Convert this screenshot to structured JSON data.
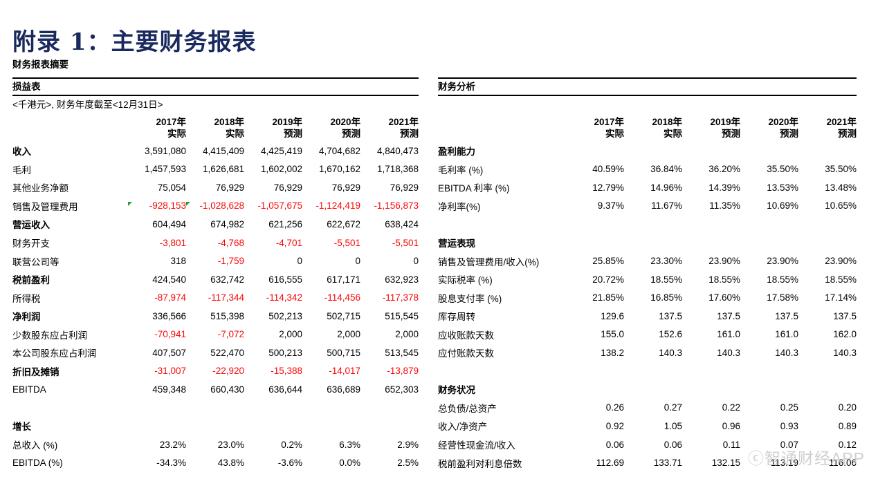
{
  "page": {
    "title": "附录 1：主要财务报表",
    "subtitle": "财务报表摘要",
    "watermark": "ⓒ智通财经APP"
  },
  "colors": {
    "title_navy": "#1a2a5e",
    "negative_red": "#fb0607",
    "marker_green": "#2f9e2f",
    "watermark_gray": "#c4c4c4"
  },
  "columns": [
    {
      "year": "2017年",
      "kind": "实际"
    },
    {
      "year": "2018年",
      "kind": "实际"
    },
    {
      "year": "2019年",
      "kind": "预测"
    },
    {
      "year": "2020年",
      "kind": "预测"
    },
    {
      "year": "2021年",
      "kind": "预测"
    }
  ],
  "income_statement": {
    "title": "损益表",
    "note": "<千港元>, 财务年度截至<12月31日>",
    "rows": [
      {
        "type": "data",
        "label": "收入",
        "bold": true,
        "values": [
          "3,591,080",
          "4,415,409",
          "4,425,419",
          "4,704,682",
          "4,840,473"
        ]
      },
      {
        "type": "data",
        "label": "毛利",
        "values": [
          "1,457,593",
          "1,626,681",
          "1,602,002",
          "1,670,162",
          "1,718,368"
        ]
      },
      {
        "type": "data",
        "label": "其他业务净额",
        "values": [
          "75,054",
          "76,929",
          "76,929",
          "76,929",
          "76,929"
        ]
      },
      {
        "type": "data",
        "label": "销售及管理费用",
        "values": [
          "-928,153",
          "-1,028,628",
          "-1,057,675",
          "-1,124,419",
          "-1,156,873"
        ],
        "markers": [
          0,
          1
        ]
      },
      {
        "type": "data",
        "label": "营运收入",
        "bold": true,
        "values": [
          "604,494",
          "674,982",
          "621,256",
          "622,672",
          "638,424"
        ]
      },
      {
        "type": "data",
        "label": "财务开支",
        "values": [
          "-3,801",
          "-4,768",
          "-4,701",
          "-5,501",
          "-5,501"
        ]
      },
      {
        "type": "data",
        "label": "联营公司等",
        "values": [
          "318",
          "-1,759",
          "0",
          "0",
          "0"
        ]
      },
      {
        "type": "data",
        "label": "税前盈利",
        "bold": true,
        "values": [
          "424,540",
          "632,742",
          "616,555",
          "617,171",
          "632,923"
        ]
      },
      {
        "type": "data",
        "label": "所得税",
        "values": [
          "-87,974",
          "-117,344",
          "-114,342",
          "-114,456",
          "-117,378"
        ]
      },
      {
        "type": "data",
        "label": "净利润",
        "bold": true,
        "values": [
          "336,566",
          "515,398",
          "502,213",
          "502,715",
          "515,545"
        ]
      },
      {
        "type": "data",
        "label": "少数股东应占利润",
        "values": [
          "-70,941",
          "-7,072",
          "2,000",
          "2,000",
          "2,000"
        ]
      },
      {
        "type": "data",
        "label": "本公司股东应占利润",
        "values": [
          "407,507",
          "522,470",
          "500,213",
          "500,715",
          "513,545"
        ]
      },
      {
        "type": "data",
        "label": "折旧及摊销",
        "bold": true,
        "values": [
          "-31,007",
          "-22,920",
          "-15,388",
          "-14,017",
          "-13,879"
        ]
      },
      {
        "type": "data",
        "label": "EBITDA",
        "values": [
          "459,348",
          "660,430",
          "636,644",
          "636,689",
          "652,303"
        ]
      },
      {
        "type": "blank"
      },
      {
        "type": "section",
        "label": "增长"
      },
      {
        "type": "data",
        "label": "总收入 (%)",
        "neg_red": false,
        "values": [
          "23.2%",
          "23.0%",
          "0.2%",
          "6.3%",
          "2.9%"
        ]
      },
      {
        "type": "data",
        "label": "EBITDA (%)",
        "neg_red": false,
        "values": [
          "-34.3%",
          "43.8%",
          "-3.6%",
          "0.0%",
          "2.5%"
        ]
      }
    ]
  },
  "financial_analysis": {
    "title": "财务分析",
    "note": "",
    "rows": [
      {
        "type": "section",
        "label": "盈利能力"
      },
      {
        "type": "data",
        "label": "毛利率 (%)",
        "values": [
          "40.59%",
          "36.84%",
          "36.20%",
          "35.50%",
          "35.50%"
        ]
      },
      {
        "type": "data",
        "label": "EBITDA 利率 (%)",
        "values": [
          "12.79%",
          "14.96%",
          "14.39%",
          "13.53%",
          "13.48%"
        ]
      },
      {
        "type": "data",
        "label": "净利率(%)",
        "values": [
          "9.37%",
          "11.67%",
          "11.35%",
          "10.69%",
          "10.65%"
        ]
      },
      {
        "type": "blank"
      },
      {
        "type": "section",
        "label": "营运表现"
      },
      {
        "type": "data",
        "label": "销售及管理费用/收入(%)",
        "values": [
          "25.85%",
          "23.30%",
          "23.90%",
          "23.90%",
          "23.90%"
        ]
      },
      {
        "type": "data",
        "label": "实际税率 (%)",
        "values": [
          "20.72%",
          "18.55%",
          "18.55%",
          "18.55%",
          "18.55%"
        ]
      },
      {
        "type": "data",
        "label": "股息支付率 (%)",
        "values": [
          "21.85%",
          "16.85%",
          "17.60%",
          "17.58%",
          "17.14%"
        ]
      },
      {
        "type": "data",
        "label": "库存周转",
        "values": [
          "129.6",
          "137.5",
          "137.5",
          "137.5",
          "137.5"
        ]
      },
      {
        "type": "data",
        "label": "应收账款天数",
        "values": [
          "155.0",
          "152.6",
          "161.0",
          "161.0",
          "162.0"
        ]
      },
      {
        "type": "data",
        "label": "应付账款天数",
        "values": [
          "138.2",
          "140.3",
          "140.3",
          "140.3",
          "140.3"
        ]
      },
      {
        "type": "blank"
      },
      {
        "type": "section",
        "label": "财务状况"
      },
      {
        "type": "data",
        "label": "总负债/总资产",
        "values": [
          "0.26",
          "0.27",
          "0.22",
          "0.25",
          "0.20"
        ]
      },
      {
        "type": "data",
        "label": "收入/净资产",
        "values": [
          "0.92",
          "1.05",
          "0.96",
          "0.93",
          "0.89"
        ]
      },
      {
        "type": "data",
        "label": "经营性现金流/收入",
        "values": [
          "0.06",
          "0.06",
          "0.11",
          "0.07",
          "0.12"
        ]
      },
      {
        "type": "data",
        "label": "税前盈利对利息倍数",
        "values": [
          "112.69",
          "133.71",
          "132.15",
          "113.19",
          "116.06"
        ]
      }
    ]
  }
}
